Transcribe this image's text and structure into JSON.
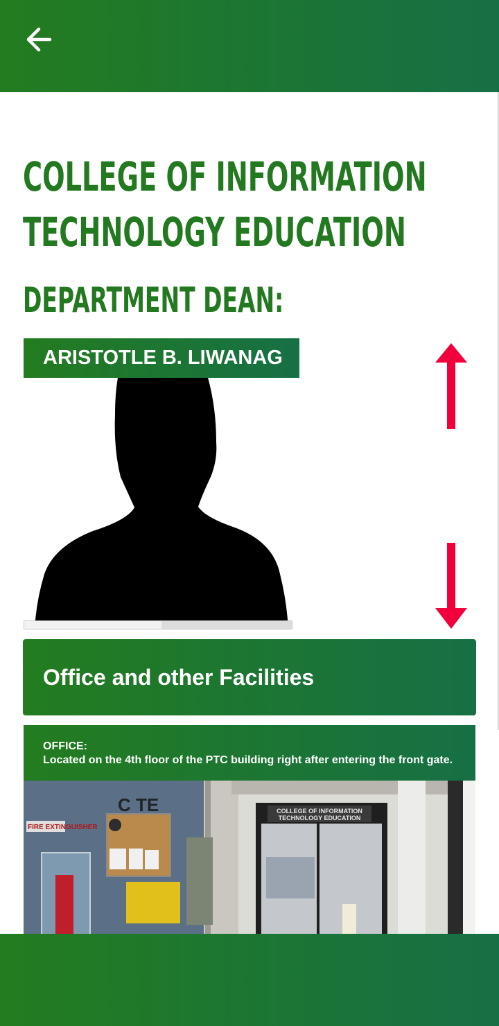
{
  "header": {
    "back_icon": "arrow-left-icon"
  },
  "college": {
    "title": "COLLEGE OF INFORMATION TECHNOLOGY EDUCATION",
    "dean_heading": "DEPARTMENT DEAN:",
    "dean_name": "ARISTOTLE B. LIWANAG",
    "dean_photo_icon": "person-silhouette-icon"
  },
  "scroll_hints": {
    "up_icon": "red-arrow-up-icon",
    "down_icon": "red-arrow-down-icon"
  },
  "facilities": {
    "heading": "Office and other Facilities",
    "office_label": "OFFICE:",
    "office_description": "Located on the 4th floor of the PTC building right after entering the front gate.",
    "photo_sign": "COLLEGE OF INFORMATION TECHNOLOGY EDUCATION",
    "photo_wall_letters": "C TE",
    "photo_extinguisher_label": "FIRE EXTINGUISHER"
  },
  "colors": {
    "primary_green": "#22791f",
    "gradient_end": "#167045",
    "arrow_red": "#f2003c"
  }
}
